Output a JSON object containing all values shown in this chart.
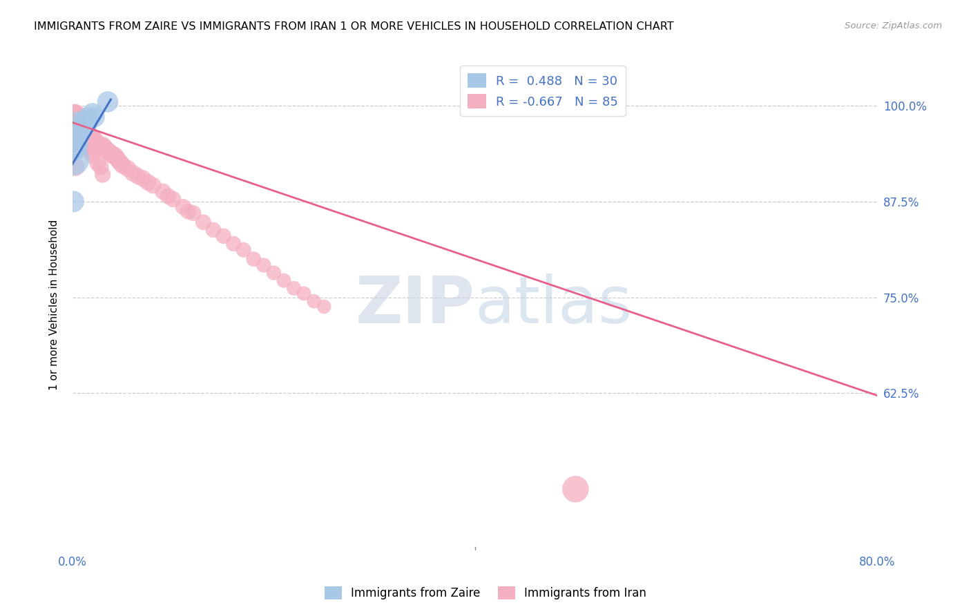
{
  "title": "IMMIGRANTS FROM ZAIRE VS IMMIGRANTS FROM IRAN 1 OR MORE VEHICLES IN HOUSEHOLD CORRELATION CHART",
  "source": "Source: ZipAtlas.com",
  "ylabel": "1 or more Vehicles in Household",
  "y_ticks": [
    0.625,
    0.75,
    0.875,
    1.0
  ],
  "y_tick_labels": [
    "62.5%",
    "75.0%",
    "87.5%",
    "100.0%"
  ],
  "x_min": 0.0,
  "x_max": 0.8,
  "y_min": 0.42,
  "y_max": 1.06,
  "zaire_color": "#a8c8e8",
  "iran_color": "#f4afc0",
  "zaire_line_color": "#4472c4",
  "iran_line_color": "#e8608a",
  "zaire_R": 0.488,
  "zaire_N": 30,
  "iran_R": -0.667,
  "iran_N": 85,
  "zaire_scatter_x": [
    0.001,
    0.002,
    0.002,
    0.003,
    0.003,
    0.003,
    0.004,
    0.004,
    0.004,
    0.005,
    0.005,
    0.006,
    0.006,
    0.006,
    0.007,
    0.007,
    0.008,
    0.008,
    0.009,
    0.01,
    0.01,
    0.011,
    0.012,
    0.013,
    0.015,
    0.015,
    0.02,
    0.022,
    0.035,
    0.001
  ],
  "zaire_scatter_y": [
    0.93,
    0.96,
    0.94,
    0.97,
    0.95,
    0.965,
    0.96,
    0.945,
    0.94,
    0.98,
    0.955,
    0.97,
    0.955,
    0.945,
    0.96,
    0.95,
    0.97,
    0.965,
    0.97,
    0.975,
    0.965,
    0.975,
    0.98,
    0.975,
    0.985,
    0.975,
    0.99,
    0.985,
    1.005,
    0.875
  ],
  "zaire_scatter_size": [
    200,
    80,
    60,
    70,
    55,
    65,
    60,
    55,
    55,
    70,
    65,
    70,
    65,
    60,
    65,
    60,
    70,
    65,
    70,
    75,
    65,
    72,
    78,
    75,
    80,
    72,
    85,
    82,
    88,
    90
  ],
  "iran_scatter_x": [
    0.001,
    0.002,
    0.002,
    0.003,
    0.003,
    0.003,
    0.004,
    0.004,
    0.005,
    0.005,
    0.005,
    0.005,
    0.006,
    0.006,
    0.006,
    0.007,
    0.007,
    0.008,
    0.008,
    0.009,
    0.01,
    0.01,
    0.011,
    0.012,
    0.013,
    0.014,
    0.015,
    0.016,
    0.018,
    0.02,
    0.022,
    0.024,
    0.025,
    0.026,
    0.028,
    0.03,
    0.032,
    0.034,
    0.036,
    0.038,
    0.04,
    0.042,
    0.044,
    0.046,
    0.048,
    0.05,
    0.055,
    0.06,
    0.065,
    0.07,
    0.075,
    0.08,
    0.09,
    0.095,
    0.1,
    0.11,
    0.115,
    0.12,
    0.13,
    0.14,
    0.15,
    0.16,
    0.17,
    0.18,
    0.19,
    0.2,
    0.21,
    0.22,
    0.23,
    0.24,
    0.25,
    0.004,
    0.007,
    0.008,
    0.009,
    0.012,
    0.014,
    0.016,
    0.018,
    0.02,
    0.025,
    0.028,
    0.03,
    0.5,
    0.003
  ],
  "iran_scatter_y": [
    0.99,
    0.99,
    0.98,
    0.985,
    0.975,
    0.97,
    0.975,
    0.965,
    0.975,
    0.97,
    0.965,
    0.955,
    0.975,
    0.965,
    0.96,
    0.965,
    0.955,
    0.97,
    0.96,
    0.965,
    0.965,
    0.956,
    0.962,
    0.968,
    0.956,
    0.962,
    0.958,
    0.955,
    0.96,
    0.958,
    0.955,
    0.951,
    0.95,
    0.945,
    0.948,
    0.948,
    0.945,
    0.942,
    0.94,
    0.938,
    0.935,
    0.935,
    0.932,
    0.928,
    0.925,
    0.922,
    0.918,
    0.912,
    0.908,
    0.905,
    0.9,
    0.896,
    0.888,
    0.882,
    0.878,
    0.868,
    0.862,
    0.86,
    0.848,
    0.838,
    0.83,
    0.82,
    0.812,
    0.8,
    0.792,
    0.782,
    0.772,
    0.762,
    0.755,
    0.745,
    0.738,
    0.99,
    0.975,
    0.968,
    0.96,
    0.958,
    0.952,
    0.948,
    0.94,
    0.935,
    0.925,
    0.92,
    0.91,
    0.5,
    0.92
  ],
  "iran_scatter_size": [
    65,
    70,
    65,
    70,
    65,
    62,
    68,
    62,
    68,
    64,
    60,
    58,
    65,
    62,
    60,
    63,
    60,
    65,
    61,
    63,
    65,
    63,
    65,
    68,
    63,
    65,
    63,
    62,
    65,
    65,
    63,
    62,
    63,
    60,
    62,
    63,
    62,
    60,
    62,
    60,
    60,
    60,
    58,
    58,
    58,
    58,
    57,
    56,
    55,
    55,
    55,
    54,
    53,
    52,
    52,
    51,
    50,
    50,
    49,
    48,
    48,
    47,
    46,
    45,
    44,
    43,
    42,
    42,
    41,
    40,
    40,
    60,
    62,
    60,
    60,
    60,
    58,
    57,
    56,
    55,
    53,
    52,
    52,
    140,
    65
  ],
  "zaire_line_x": [
    0.0,
    0.038
  ],
  "zaire_line_y": [
    0.924,
    1.008
  ],
  "iran_line_x": [
    0.0,
    0.8
  ],
  "iran_line_y": [
    0.978,
    0.622
  ]
}
